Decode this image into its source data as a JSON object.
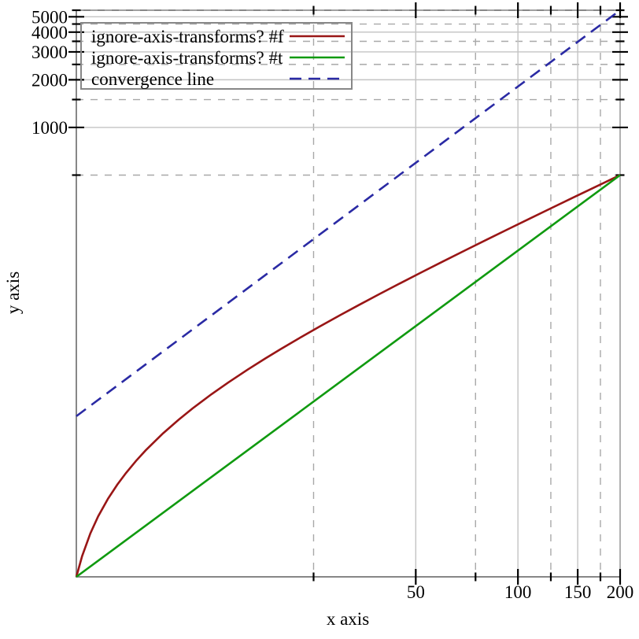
{
  "chart_data": {
    "type": "line",
    "title": "",
    "xlabel": "x axis",
    "ylabel": "y axis",
    "x_scale": "log",
    "y_scale": "log",
    "x_domain": [
      5,
      200
    ],
    "y_domain": [
      1.45,
      5500
    ],
    "x_ticks": {
      "major": [
        50,
        100,
        150,
        200
      ],
      "minor": [
        25,
        75,
        125,
        175
      ]
    },
    "y_ticks": {
      "major": [
        1000,
        2000,
        3000,
        4000,
        5000
      ],
      "minor": [
        500,
        1500,
        2500,
        3500,
        4500,
        5500
      ]
    },
    "grid": {
      "major_style": "solid",
      "minor_style": "dashed",
      "major_color": "#c3c3c3",
      "minor_color": "#a8a8a8"
    },
    "axes_color": "#878787",
    "tick_color": "#000000",
    "legend": {
      "position": "top-left"
    },
    "series": [
      {
        "label": "ignore-axis-transforms? #f",
        "color": "#991616",
        "line_style": "solid",
        "ignore_axis_transforms": false,
        "segment": [
          [
            5,
            1.45
          ],
          [
            200,
            500
          ]
        ],
        "samples": {
          "x": [
            5,
            5.2,
            5.5,
            5.8,
            6.2,
            6.6,
            7,
            7.5,
            8,
            9,
            10,
            11,
            12.5,
            14,
            16,
            18,
            20,
            23,
            26,
            30,
            34,
            39,
            45,
            52,
            60,
            70,
            81,
            94,
            108,
            125,
            144,
            166,
            190,
            200
          ],
          "y": [
            1.45,
            1.96,
            2.73,
            3.5,
            4.52,
            5.54,
            6.56,
            7.84,
            9.12,
            11.68,
            14.23,
            16.79,
            20.63,
            24.46,
            29.57,
            34.69,
            39.8,
            47.47,
            55.14,
            65.37,
            75.6,
            88.38,
            103.72,
            121.61,
            142.07,
            167.63,
            195.75,
            228.99,
            264.78,
            308.25,
            356.83,
            413.07,
            474.43,
            500
          ]
        }
      },
      {
        "label": "ignore-axis-transforms? #t",
        "color": "#109a10",
        "line_style": "solid",
        "ignore_axis_transforms": true,
        "segment": [
          [
            5,
            1.45
          ],
          [
            200,
            500
          ]
        ]
      },
      {
        "label": "convergence line",
        "color": "#2a2aa4",
        "line_style": "dashed",
        "ignore_axis_transforms": true,
        "segment": [
          [
            5,
            15
          ],
          [
            200,
            5500
          ]
        ]
      }
    ]
  }
}
